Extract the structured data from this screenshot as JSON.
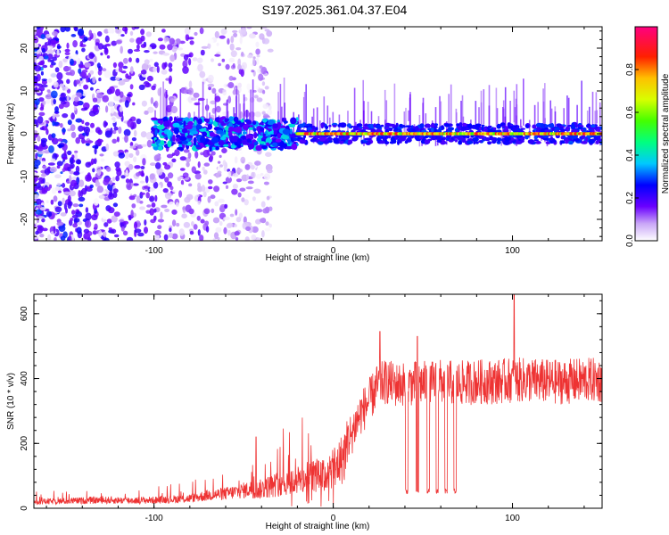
{
  "title": "S197.2025.361.04.37.E04",
  "chart_data": [
    {
      "type": "heatmap",
      "xlabel": "Height of straight line (km)",
      "ylabel": "Frequency (Hz)",
      "xlim": [
        -167,
        150
      ],
      "ylim": [
        -25,
        25
      ],
      "xticks": [
        -100,
        0,
        100
      ],
      "yticks": [
        -20,
        -10,
        0,
        10,
        20
      ],
      "colorbar": {
        "label": "Normalized spectral amplitude",
        "range": [
          0,
          1
        ],
        "ticks": [
          "0.0",
          "0.2",
          "0.4",
          "0.6",
          "0.8"
        ],
        "tick_values": [
          0.0,
          0.2,
          0.4,
          0.6,
          0.8
        ]
      },
      "description_series": [
        {
          "name": "noise_region",
          "x_range": [
            -167,
            -35
          ],
          "freq_spread": 25,
          "mean_amplitude": 0.15
        },
        {
          "name": "band_region",
          "x_range": [
            -100,
            -20
          ],
          "freq_center": 0,
          "mean_amplitude": 0.35
        },
        {
          "name": "tone_region",
          "x_range": [
            -20,
            150
          ],
          "freq_center": 0,
          "mean_amplitude": 0.85
        }
      ]
    },
    {
      "type": "line",
      "xlabel": "Height of straight line (km)",
      "ylabel": "SNR (10 * v/v)",
      "xlim": [
        -167,
        150
      ],
      "ylim": [
        0,
        660
      ],
      "xticks": [
        -100,
        0,
        100
      ],
      "yticks": [
        0,
        200,
        400,
        600
      ],
      "series": [
        {
          "name": "SNR",
          "color": "#ee3333",
          "x": [
            -167,
            -150,
            -130,
            -110,
            -100,
            -90,
            -80,
            -70,
            -60,
            -50,
            -45,
            -40,
            -35,
            -30,
            -25,
            -20,
            -15,
            -10,
            -5,
            0,
            5,
            10,
            15,
            20,
            25,
            30,
            35,
            40,
            50,
            60,
            70,
            80,
            90,
            100,
            110,
            120,
            130,
            140,
            150
          ],
          "values": [
            20,
            22,
            25,
            24,
            25,
            28,
            30,
            40,
            45,
            55,
            60,
            70,
            80,
            90,
            95,
            100,
            110,
            120,
            115,
            140,
            180,
            230,
            290,
            330,
            380,
            390,
            380,
            385,
            385,
            390,
            385,
            390,
            390,
            395,
            395,
            390,
            390,
            395,
            395
          ],
          "spikes": [
            {
              "x": 101,
              "value": 660
            },
            {
              "x": -43,
              "value": 220
            },
            {
              "x": 26,
              "value": 545
            },
            {
              "x": 47,
              "value": 530
            }
          ],
          "dropouts": [
            41,
            47,
            53,
            58,
            63,
            68
          ],
          "dropout_value": 45
        }
      ]
    }
  ]
}
